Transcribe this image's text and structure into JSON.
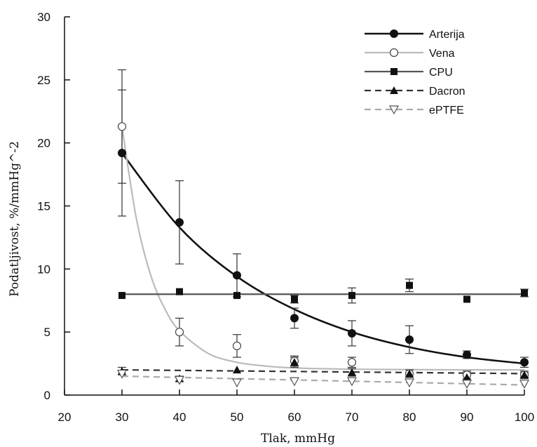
{
  "chart_data": {
    "type": "line",
    "xlabel": "Tlak, mmHg",
    "ylabel": "Podatljivost, %/mmHg^-2",
    "xlim": [
      20,
      100
    ],
    "ylim": [
      0,
      30
    ],
    "xticks": [
      "20",
      "30",
      "40",
      "50",
      "60",
      "70",
      "80",
      "90",
      "100"
    ],
    "yticks": [
      "0",
      "5",
      "10",
      "15",
      "20",
      "25",
      "30"
    ],
    "grid": false,
    "legend_position": "top-right",
    "x": [
      30,
      40,
      50,
      60,
      70,
      80,
      90,
      100
    ],
    "series": [
      {
        "name": "Arterija",
        "color": "#111111",
        "line_style": "solid",
        "marker": "filled-circle",
        "values": [
          19.2,
          13.7,
          9.5,
          6.1,
          4.9,
          4.4,
          3.2,
          2.6
        ],
        "error": [
          5.0,
          3.3,
          1.7,
          0.8,
          1.0,
          1.1,
          0.3,
          0.4
        ],
        "fit": [
          [
            30,
            19.2
          ],
          [
            40,
            13.3
          ],
          [
            50,
            9.4
          ],
          [
            60,
            6.8
          ],
          [
            70,
            5.0
          ],
          [
            80,
            3.8
          ],
          [
            90,
            3.0
          ],
          [
            100,
            2.5
          ]
        ]
      },
      {
        "name": "Vena",
        "color": "#bbbbbb",
        "line_style": "solid",
        "marker": "open-circle",
        "values": [
          21.3,
          5.0,
          3.9,
          2.7,
          2.6,
          1.7,
          1.6,
          1.6
        ],
        "error": [
          4.5,
          1.1,
          0.9,
          0.4,
          0.4,
          0.3,
          0.3,
          0.3
        ],
        "fit": [
          [
            30,
            21.3
          ],
          [
            32.5,
            14.0
          ],
          [
            35,
            9.5
          ],
          [
            37.5,
            6.8
          ],
          [
            40,
            5.1
          ],
          [
            45,
            3.3
          ],
          [
            50,
            2.6
          ],
          [
            55,
            2.3
          ],
          [
            60,
            2.15
          ],
          [
            70,
            2.05
          ],
          [
            80,
            2.02
          ],
          [
            90,
            2.0
          ],
          [
            100,
            2.0
          ]
        ]
      },
      {
        "name": "CPU",
        "color": "#555555",
        "line_style": "solid",
        "marker": "filled-square",
        "values": [
          7.9,
          8.2,
          7.9,
          7.6,
          7.9,
          8.7,
          7.6,
          8.1
        ],
        "error": [
          0,
          0,
          0,
          0.3,
          0.6,
          0.5,
          0,
          0.3
        ],
        "fit": [
          [
            30,
            8.0
          ],
          [
            100,
            8.0
          ]
        ]
      },
      {
        "name": "Dacron",
        "color": "#333333",
        "line_style": "dashed",
        "marker": "filled-triangle",
        "values": [
          1.9,
          1.3,
          2.0,
          2.6,
          1.8,
          1.7,
          1.4,
          1.6
        ],
        "error": [
          0.3,
          0.2,
          0,
          0.4,
          0.3,
          0,
          0.2,
          0.2
        ],
        "fit": [
          [
            30,
            2.0
          ],
          [
            100,
            1.7
          ]
        ]
      },
      {
        "name": "ePTFE",
        "color": "#aaaaaa",
        "line_style": "dashed",
        "marker": "open-triangle-down",
        "values": [
          1.7,
          1.2,
          1.0,
          1.1,
          1.1,
          1.0,
          0.9,
          0.9
        ],
        "error": [
          0,
          0,
          0,
          0,
          0,
          0,
          0,
          0
        ],
        "fit": [
          [
            30,
            1.5
          ],
          [
            100,
            0.8
          ]
        ]
      }
    ]
  }
}
